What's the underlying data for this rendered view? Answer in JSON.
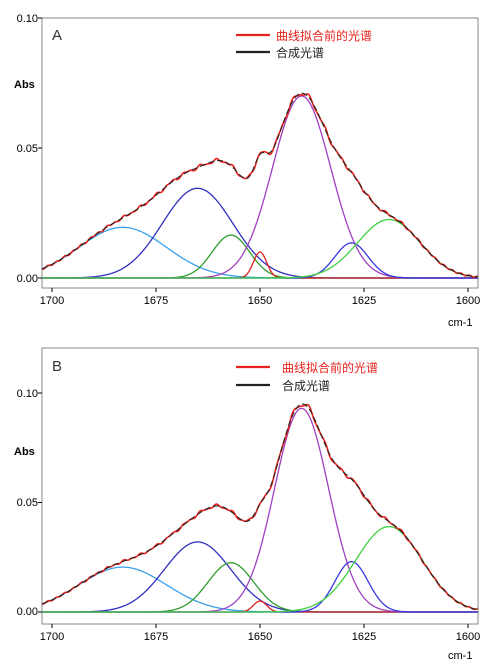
{
  "chart_data": [
    {
      "type": "line",
      "panel_label": "A",
      "ylabel": "Abs",
      "xlabel": "cm-1",
      "x_reversed": true,
      "xlim": [
        1700,
        1600
      ],
      "ylim": [
        0,
        0.1
      ],
      "x_ticks": [
        "1700",
        "1675",
        "1650",
        "1625",
        "1600"
      ],
      "y_ticks": [
        "0.00",
        "0.05",
        "0.10"
      ],
      "legend": [
        {
          "label": "曲线拟合前的光谱",
          "color": "#e8221c"
        },
        {
          "label": "合成光谱",
          "color": "#222222"
        }
      ],
      "components": [
        {
          "center": 1683,
          "height": 0.0195,
          "width": 10.5,
          "color": "#3aa0ee"
        },
        {
          "center": 1665,
          "height": 0.0345,
          "width": 8.5,
          "color": "#3030c0"
        },
        {
          "center": 1657,
          "height": 0.0165,
          "width": 4.5,
          "color": "#2e9e2e"
        },
        {
          "center": 1650,
          "height": 0.01,
          "width": 1.6,
          "color": "#e02020"
        },
        {
          "center": 1640,
          "height": 0.07,
          "width": 7.0,
          "color": "#a040c0"
        },
        {
          "center": 1628,
          "height": 0.0135,
          "width": 4.0,
          "color": "#3838e0"
        },
        {
          "center": 1619,
          "height": 0.0225,
          "width": 7.5,
          "color": "#40d040"
        }
      ],
      "baseline_color": "#36b8e8"
    },
    {
      "type": "line",
      "panel_label": "B",
      "ylabel": "Abs",
      "xlabel": "cm-1",
      "x_reversed": true,
      "xlim": [
        1700,
        1600
      ],
      "ylim": [
        0,
        0.1
      ],
      "x_ticks": [
        "1700",
        "1675",
        "1650",
        "1625",
        "1600"
      ],
      "y_ticks": [
        "0.00",
        "0.05",
        "0.10"
      ],
      "legend": [
        {
          "label": "曲线拟合前的光谱",
          "color": "#e8221c"
        },
        {
          "label": "合成光谱",
          "color": "#222222"
        }
      ],
      "components": [
        {
          "center": 1683,
          "height": 0.0205,
          "width": 10.5,
          "color": "#3aa0ee"
        },
        {
          "center": 1665,
          "height": 0.032,
          "width": 8.0,
          "color": "#3030c0"
        },
        {
          "center": 1657,
          "height": 0.0225,
          "width": 5.5,
          "color": "#2e9e2e"
        },
        {
          "center": 1650,
          "height": 0.005,
          "width": 1.6,
          "color": "#e02020"
        },
        {
          "center": 1640,
          "height": 0.093,
          "width": 6.5,
          "color": "#a040c0"
        },
        {
          "center": 1628,
          "height": 0.023,
          "width": 4.0,
          "color": "#3838e0"
        },
        {
          "center": 1619,
          "height": 0.039,
          "width": 8.0,
          "color": "#40d040"
        }
      ],
      "baseline_color": "#36b8e8"
    }
  ]
}
